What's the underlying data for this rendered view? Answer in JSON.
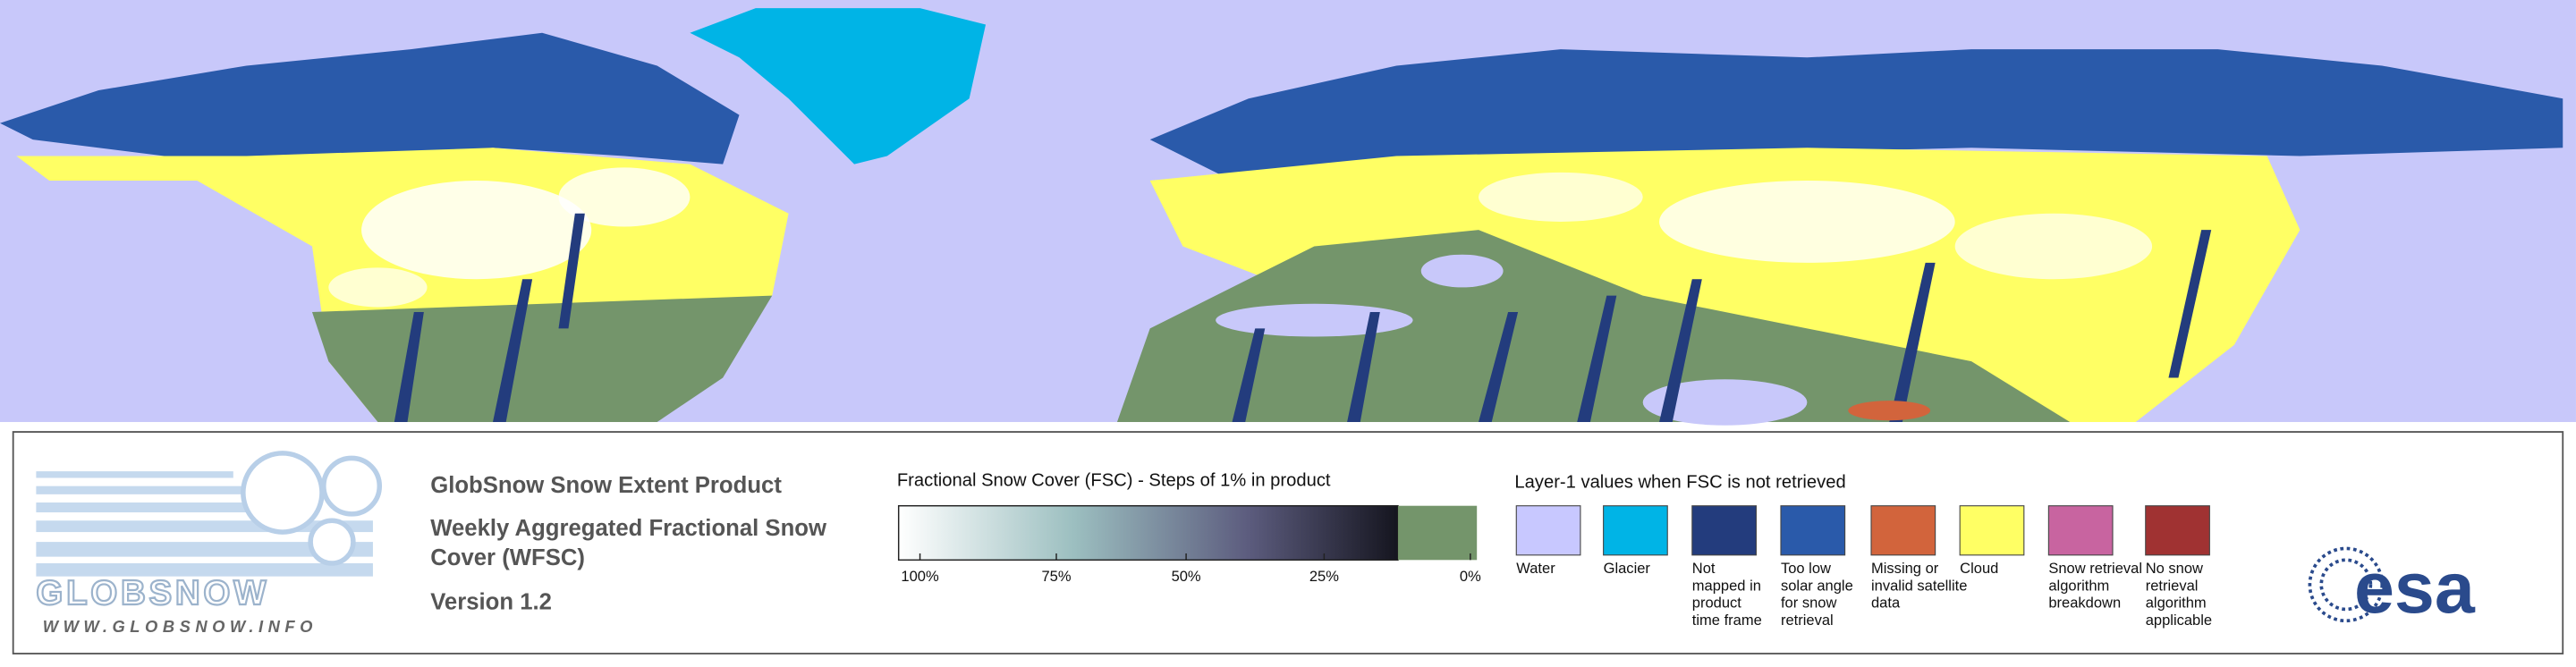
{
  "header": {
    "title": "GlobSnow Snow Extent Product",
    "subtitle_lines": [
      "Weekly Aggregated Fractional Snow",
      "Cover (WFSC)"
    ],
    "version": "Version 1.2"
  },
  "logo": {
    "name": "GLOBSNOW",
    "url": "WWW.GLOBSNOW.INFO"
  },
  "fsc_legend": {
    "title": "Fractional Snow Cover (FSC) - Steps of 1% in product",
    "ticks": [
      "100%",
      "75%",
      "50%",
      "25%",
      "0%"
    ]
  },
  "layer_legend": {
    "title": "Layer-1 values when FSC is not retrieved",
    "items": [
      {
        "lines": [
          "Water"
        ],
        "color": "#c8c8ff"
      },
      {
        "lines": [
          "Glacier"
        ],
        "color": "#00b4e6"
      },
      {
        "lines": [
          "Not",
          "mapped in",
          "product",
          "time frame"
        ],
        "color": "#233c7d"
      },
      {
        "lines": [
          "Too low",
          "solar angle",
          "for snow",
          "retrieval"
        ],
        "color": "#2a5aaa"
      },
      {
        "lines": [
          "Missing or",
          "invalid satellite",
          "data"
        ],
        "color": "#d2643c"
      },
      {
        "lines": [
          "Cloud"
        ],
        "color": "#ffff64"
      },
      {
        "lines": [
          "Snow retrieval",
          "algorithm",
          "breakdown"
        ],
        "color": "#c864a0"
      },
      {
        "lines": [
          "No snow",
          "retrieval",
          "algorithm",
          "applicable"
        ],
        "color": "#a03232"
      }
    ]
  },
  "esa_logo": "esa"
}
